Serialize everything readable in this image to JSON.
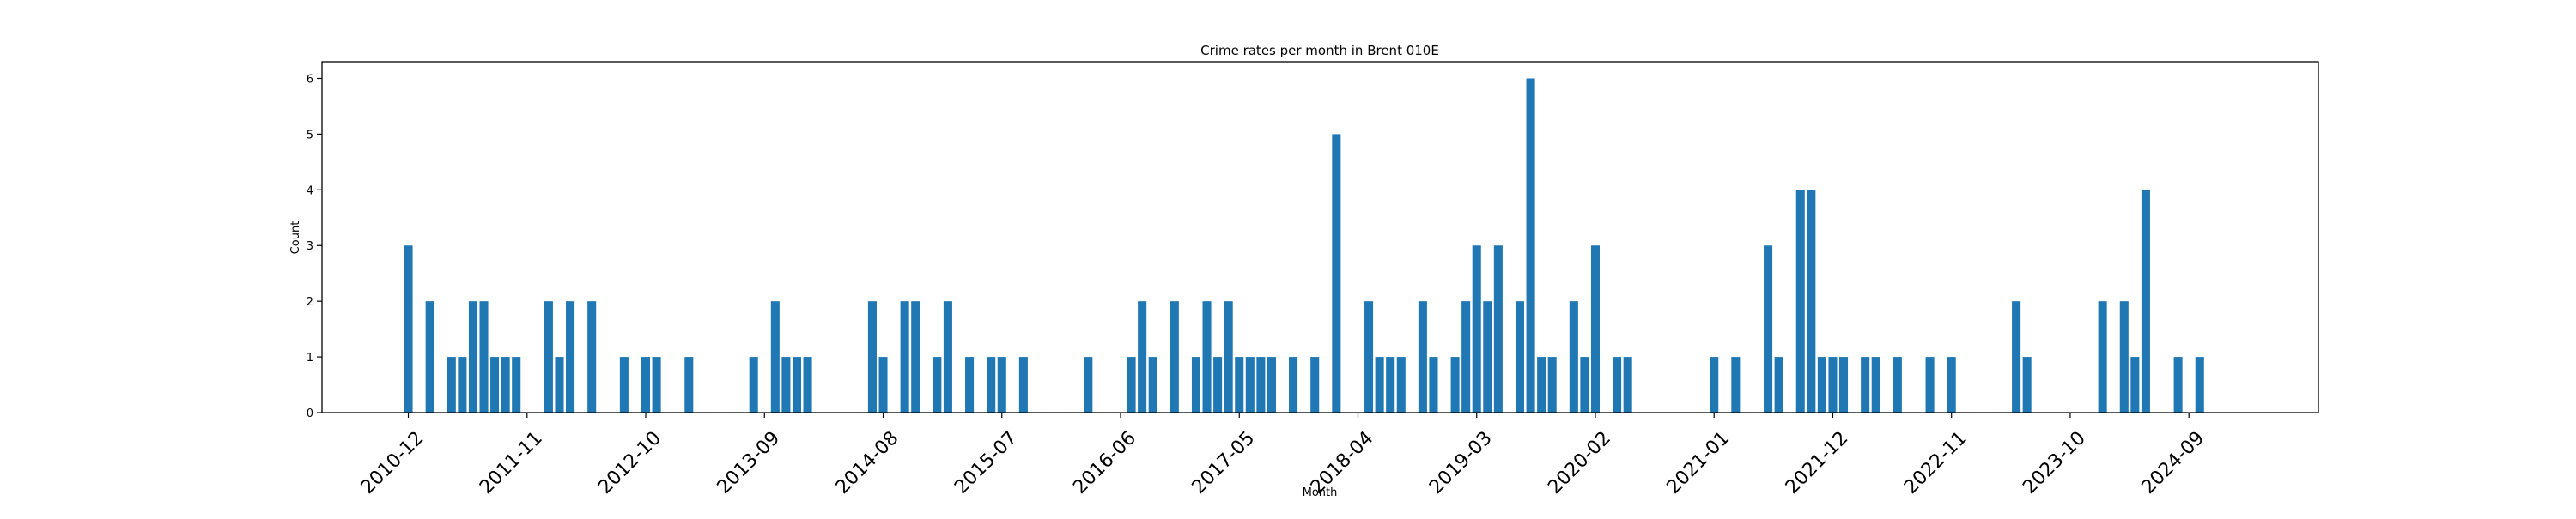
{
  "chart_data": {
    "type": "bar",
    "title": "Crime rates per month in Brent 010E",
    "xlabel": "Month",
    "ylabel": "Count",
    "ylim": [
      0,
      6.3
    ],
    "yticks": [
      0,
      1,
      2,
      3,
      4,
      5,
      6
    ],
    "xticks": [
      "2010-12",
      "2011-11",
      "2012-10",
      "2013-09",
      "2014-08",
      "2015-07",
      "2016-06",
      "2017-05",
      "2018-04",
      "2019-03",
      "2020-02",
      "2021-01",
      "2021-12",
      "2022-11",
      "2023-10",
      "2024-09"
    ],
    "xlim": [
      "2010-04",
      "2025-09"
    ],
    "bar_color": "#1f77b4",
    "grid": false,
    "legend": "none",
    "categories": [
      "2010-12",
      "2011-02",
      "2011-04",
      "2011-05",
      "2011-06",
      "2011-07",
      "2011-08",
      "2011-09",
      "2011-10",
      "2012-01",
      "2012-02",
      "2012-03",
      "2012-05",
      "2012-08",
      "2012-10",
      "2012-11",
      "2013-02",
      "2013-08",
      "2013-10",
      "2013-11",
      "2013-12",
      "2014-01",
      "2014-07",
      "2014-08",
      "2014-10",
      "2014-11",
      "2015-01",
      "2015-02",
      "2015-04",
      "2015-06",
      "2015-07",
      "2015-09",
      "2016-03",
      "2016-07",
      "2016-08",
      "2016-09",
      "2016-11",
      "2017-01",
      "2017-02",
      "2017-03",
      "2017-04",
      "2017-05",
      "2017-06",
      "2017-07",
      "2017-08",
      "2017-10",
      "2017-12",
      "2018-02",
      "2018-05",
      "2018-06",
      "2018-07",
      "2018-08",
      "2018-10",
      "2018-11",
      "2019-01",
      "2019-02",
      "2019-03",
      "2019-04",
      "2019-05",
      "2019-07",
      "2019-08",
      "2019-09",
      "2019-10",
      "2019-12",
      "2020-01",
      "2020-02",
      "2020-04",
      "2020-05",
      "2021-01",
      "2021-03",
      "2021-06",
      "2021-07",
      "2021-09",
      "2021-10",
      "2021-11",
      "2021-12",
      "2022-01",
      "2022-03",
      "2022-04",
      "2022-06",
      "2022-09",
      "2022-11",
      "2023-05",
      "2023-06",
      "2024-01",
      "2024-03",
      "2024-04",
      "2024-05",
      "2024-08",
      "2024-10"
    ],
    "values": [
      3,
      2,
      1,
      1,
      2,
      2,
      1,
      1,
      1,
      2,
      1,
      2,
      2,
      1,
      1,
      1,
      1,
      1,
      2,
      1,
      1,
      1,
      2,
      1,
      2,
      2,
      1,
      2,
      1,
      1,
      1,
      1,
      1,
      1,
      2,
      1,
      2,
      1,
      2,
      1,
      2,
      1,
      1,
      1,
      1,
      1,
      1,
      5,
      2,
      1,
      1,
      1,
      2,
      1,
      1,
      2,
      3,
      2,
      3,
      2,
      6,
      1,
      1,
      2,
      1,
      3,
      1,
      1,
      1,
      1,
      3,
      1,
      4,
      4,
      1,
      1,
      1,
      1,
      1,
      1,
      1,
      1,
      2,
      1,
      2,
      2,
      1,
      4,
      1,
      1
    ]
  }
}
